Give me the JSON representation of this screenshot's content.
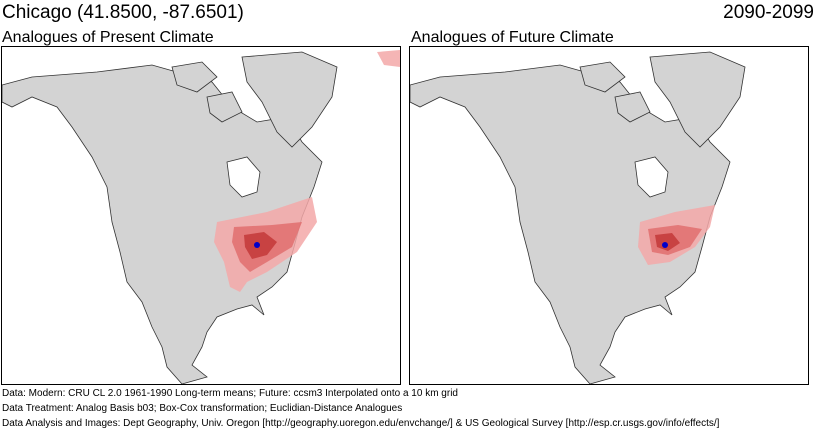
{
  "header": {
    "location": "Chicago  (41.8500, -87.6501)",
    "period": "2090-2099"
  },
  "panels": [
    {
      "title": "Analogues of Present Climate"
    },
    {
      "title": "Analogues of Future Climate"
    }
  ],
  "colors": {
    "land": "#d3d3d3",
    "ocean": "#ffffff",
    "analogue_light": "#f3a8a8",
    "analogue_mid": "#e06e6e",
    "analogue_dark": "#c43c3c",
    "city_marker": "#0000cc"
  },
  "footer": {
    "data": "Data:  Modern: CRU CL 2.0 1961-1990 Long-term means; Future: ccsm3 Interpolated onto a 10 km grid",
    "treatment": "Data Treatment:  Analog Basis b03; Box-Cox transformation; Euclidian-Distance Analogues",
    "analysis": "Data Analysis and Images:  Dept Geography, Univ. Oregon [http://geography.uoregon.edu/envchange/] & US Geological Survey [http://esp.cr.usgs.gov/info/effects/]"
  }
}
